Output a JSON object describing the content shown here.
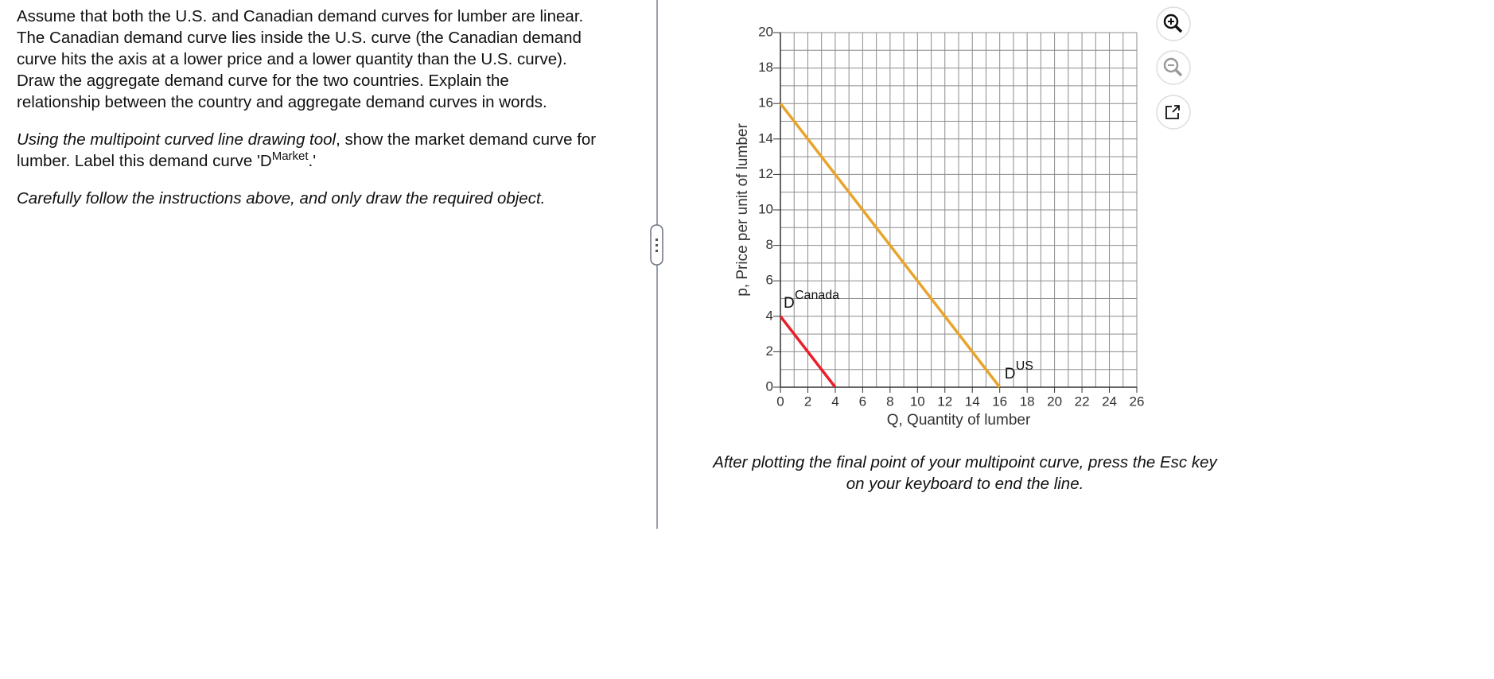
{
  "question": {
    "intro_lines": [
      "Assume that both the U.S. and Canadian demand curves for lumber are linear.",
      "The Canadian demand curve lies inside the U.S. curve (the Canadian demand",
      "curve hits the axis at a lower price and a lower quantity than the U.S. curve).",
      "Draw the aggregate demand curve for the two countries.  Explain the",
      "relationship between the country and aggregate demand curves in words."
    ],
    "tool": "Using the multipoint curved line drawing tool",
    "instruction": ", show the market demand curve for lumber.  Label this demand curve 'D",
    "instruction_sup": "Market",
    "instruction_end": ".'",
    "note": "Carefully follow the instructions above, and only draw the required object."
  },
  "chart_data": {
    "type": "line",
    "x_label": "Q, Quantity of lumber",
    "y_label": "p, Price per unit of lumber",
    "xlim": [
      0,
      26
    ],
    "ylim": [
      0,
      20
    ],
    "xticks": [
      0,
      2,
      4,
      6,
      8,
      10,
      12,
      14,
      16,
      18,
      20,
      22,
      24,
      26
    ],
    "yticks": [
      0,
      2,
      4,
      6,
      8,
      10,
      12,
      14,
      16,
      18,
      20
    ],
    "grid": true,
    "minor_grid": true,
    "series": [
      {
        "name": "Canada",
        "label": "D",
        "color": "#e8202a",
        "x": [
          0,
          4
        ],
        "values": [
          4,
          0
        ]
      },
      {
        "name": "US",
        "label": "D",
        "color": "#e8a42c",
        "x": [
          0,
          16
        ],
        "values": [
          16,
          0
        ]
      }
    ]
  },
  "footer_lines": [
    "After plotting the final point of your multipoint curve, press the Esc key",
    "on your keyboard to end the line."
  ]
}
